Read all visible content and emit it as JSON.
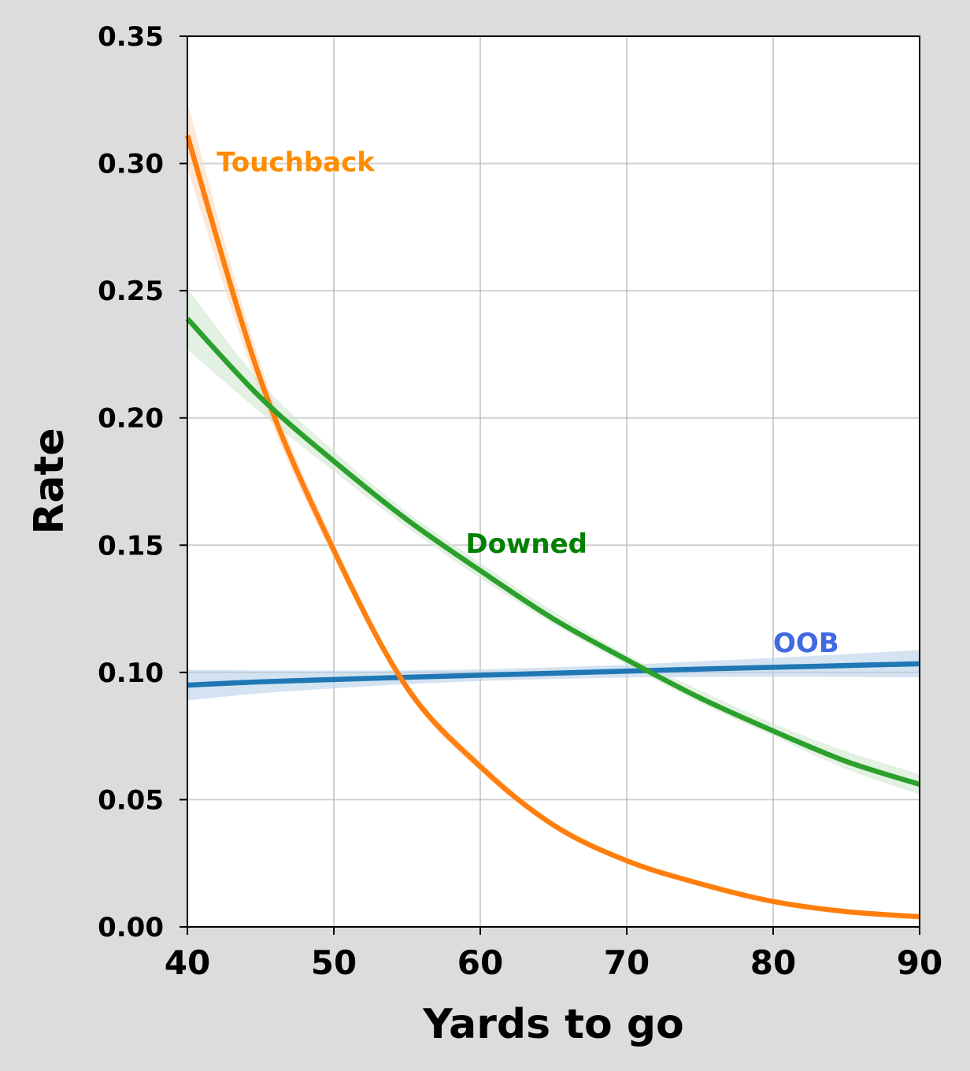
{
  "chart_data": {
    "type": "line",
    "title": "",
    "xlabel": "Yards to go",
    "ylabel": "Rate",
    "xlim": [
      40,
      90
    ],
    "ylim": [
      0,
      0.35
    ],
    "xticks": [
      40,
      50,
      60,
      70,
      80,
      90
    ],
    "yticks": [
      0.0,
      0.05,
      0.1,
      0.15,
      0.2,
      0.25,
      0.3,
      0.35
    ],
    "ytick_labels": [
      "0.00",
      "0.05",
      "0.10",
      "0.15",
      "0.20",
      "0.25",
      "0.30",
      "0.35"
    ],
    "grid": true,
    "x": [
      40,
      45,
      50,
      55,
      60,
      65,
      70,
      75,
      80,
      85,
      90
    ],
    "series": [
      {
        "name": "OOB",
        "label": "OOB",
        "color": "#1f77b4",
        "label_color": "#4169e1",
        "band_color": "#b8d0ea",
        "label_at": [
          80,
          0.108
        ],
        "values": [
          0.095,
          0.0963,
          0.0972,
          0.0981,
          0.0989,
          0.0997,
          0.1005,
          0.1013,
          0.102,
          0.1027,
          0.1034
        ],
        "lower": [
          0.089,
          0.0918,
          0.0937,
          0.0954,
          0.0966,
          0.0974,
          0.098,
          0.0982,
          0.0983,
          0.0982,
          0.098
        ],
        "upper": [
          0.101,
          0.1008,
          0.1007,
          0.1008,
          0.1012,
          0.102,
          0.103,
          0.1044,
          0.1057,
          0.1072,
          0.1088
        ]
      },
      {
        "name": "Touchback",
        "label": "Touchback",
        "color": "#ff7f0e",
        "label_color": "#ff8c00",
        "band_color": "#fdd9bd",
        "label_at": [
          42,
          0.297
        ],
        "values": [
          0.311,
          0.215,
          0.148,
          0.094,
          0.063,
          0.04,
          0.026,
          0.017,
          0.01,
          0.006,
          0.004
        ],
        "lower": [
          0.298,
          0.209,
          0.145,
          0.092,
          0.061,
          0.039,
          0.025,
          0.016,
          0.0095,
          0.0057,
          0.0037
        ],
        "upper": [
          0.324,
          0.221,
          0.151,
          0.096,
          0.065,
          0.041,
          0.027,
          0.018,
          0.0105,
          0.0063,
          0.0043
        ]
      },
      {
        "name": "Downed",
        "label": "Downed",
        "color": "#2ca02c",
        "label_color": "#008000",
        "band_color": "#cfe8cf",
        "label_at": [
          59,
          0.147
        ],
        "values": [
          0.239,
          0.208,
          0.183,
          0.16,
          0.14,
          0.121,
          0.105,
          0.09,
          0.077,
          0.065,
          0.056
        ],
        "lower": [
          0.227,
          0.202,
          0.179,
          0.157,
          0.137,
          0.119,
          0.103,
          0.088,
          0.075,
          0.062,
          0.052
        ],
        "upper": [
          0.251,
          0.214,
          0.187,
          0.163,
          0.143,
          0.124,
          0.107,
          0.093,
          0.08,
          0.069,
          0.06
        ]
      }
    ]
  }
}
